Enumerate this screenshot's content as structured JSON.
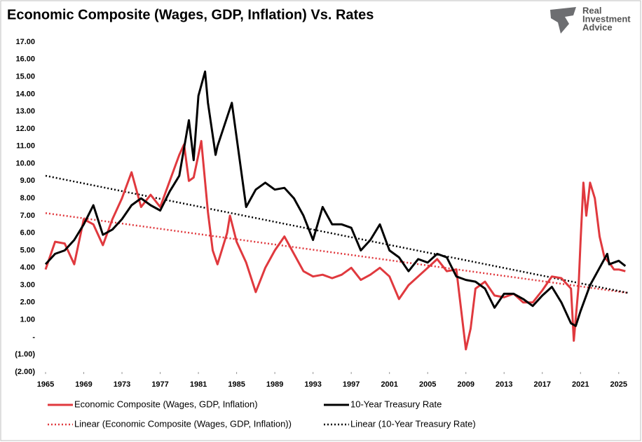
{
  "chart_data": {
    "type": "line",
    "title": "Economic Composite (Wages, GDP, Inflation) Vs. Rates",
    "logo": [
      "Real",
      "Investment",
      "Advice"
    ],
    "xlim": [
      1965,
      2026
    ],
    "xticks": [
      1965,
      1969,
      1973,
      1977,
      1981,
      1985,
      1989,
      1993,
      1997,
      2001,
      2005,
      2009,
      2013,
      2017,
      2021,
      2025
    ],
    "ylim": [
      -2,
      17
    ],
    "yticks": [
      {
        "value": 17,
        "label": "17.00"
      },
      {
        "value": 16,
        "label": "16.00"
      },
      {
        "value": 15,
        "label": "15.00"
      },
      {
        "value": 14,
        "label": "14.00"
      },
      {
        "value": 13,
        "label": "13.00"
      },
      {
        "value": 12,
        "label": "12.00"
      },
      {
        "value": 11,
        "label": "11.00"
      },
      {
        "value": 10,
        "label": "10.00"
      },
      {
        "value": 9,
        "label": "9.00"
      },
      {
        "value": 8,
        "label": "8.00"
      },
      {
        "value": 7,
        "label": "7.00"
      },
      {
        "value": 6,
        "label": "6.00"
      },
      {
        "value": 5,
        "label": "5.00"
      },
      {
        "value": 4,
        "label": "4.00"
      },
      {
        "value": 3,
        "label": "3.00"
      },
      {
        "value": 2,
        "label": "2.00"
      },
      {
        "value": 1,
        "label": "1.00"
      },
      {
        "value": 0,
        "label": "-"
      },
      {
        "value": -1,
        "label": "(1.00)"
      },
      {
        "value": -2,
        "label": "(2.00)"
      }
    ],
    "grid": false,
    "series": [
      {
        "name": "Economic Composite (Wages, GDP, Inflation)",
        "color": "#e0393e",
        "style": "solid",
        "x": [
          1965,
          1966,
          1967,
          1968,
          1969,
          1970,
          1971,
          1972,
          1973,
          1974,
          1975,
          1976,
          1977,
          1978,
          1979,
          1979.5,
          1980,
          1980.5,
          1981,
          1981.3,
          1982,
          1982.5,
          1983,
          1984,
          1984.3,
          1985,
          1986,
          1987,
          1988,
          1989,
          1990,
          1991,
          1992,
          1993,
          1994,
          1995,
          1996,
          1997,
          1998,
          1999,
          2000,
          2001,
          2002,
          2003,
          2004,
          2005,
          2006,
          2007,
          2008,
          2009,
          2009.5,
          2010,
          2011,
          2012,
          2013,
          2014,
          2015,
          2016,
          2017,
          2018,
          2019,
          2020,
          2020.3,
          2020.8,
          2021,
          2021.3,
          2021.6,
          2022,
          2022.5,
          2023,
          2023.5,
          2024,
          2024.5,
          2025,
          2025.7
        ],
        "values": [
          3.9,
          5.5,
          5.4,
          4.2,
          6.8,
          6.5,
          5.3,
          6.8,
          8.0,
          9.5,
          7.5,
          8.2,
          7.5,
          9.0,
          10.5,
          11.1,
          9.0,
          9.2,
          10.5,
          11.3,
          7.2,
          5.0,
          4.2,
          6.0,
          7.0,
          5.5,
          4.3,
          2.6,
          4.0,
          5.0,
          5.8,
          4.8,
          3.8,
          3.5,
          3.6,
          3.4,
          3.6,
          4.0,
          3.3,
          3.6,
          4.0,
          3.5,
          2.2,
          3.0,
          3.5,
          4.0,
          4.5,
          3.8,
          3.9,
          -0.7,
          0.5,
          2.8,
          3.2,
          2.4,
          2.3,
          2.5,
          2.0,
          2.0,
          2.7,
          3.5,
          3.4,
          2.8,
          -0.2,
          3.0,
          5.5,
          8.9,
          7.0,
          8.9,
          8.0,
          5.8,
          4.6,
          4.3,
          3.9,
          3.9,
          3.8
        ]
      },
      {
        "name": "10-Year Treasury Rate",
        "color": "#000000",
        "style": "solid",
        "x": [
          1965,
          1966,
          1967,
          1968,
          1969,
          1970,
          1971,
          1972,
          1973,
          1974,
          1975,
          1976,
          1977,
          1978,
          1979,
          1980,
          1980.5,
          1981,
          1981.7,
          1982,
          1982.8,
          1983,
          1984.5,
          1985,
          1986,
          1987,
          1988,
          1989,
          1990,
          1991,
          1992,
          1993,
          1994,
          1995,
          1996,
          1997,
          1998,
          1999,
          2000,
          2001,
          2002,
          2003,
          2004,
          2005,
          2006,
          2007,
          2008,
          2009,
          2010,
          2011,
          2012,
          2013,
          2014,
          2015,
          2016,
          2017,
          2018,
          2019,
          2020,
          2020.5,
          2021,
          2022,
          2023,
          2023.8,
          2024,
          2025,
          2025.7
        ],
        "values": [
          4.2,
          4.8,
          5.0,
          5.6,
          6.5,
          7.6,
          5.9,
          6.2,
          6.8,
          7.6,
          8.0,
          7.6,
          7.3,
          8.4,
          9.3,
          12.5,
          10.2,
          13.9,
          15.3,
          13.5,
          10.5,
          11.0,
          13.5,
          11.5,
          7.5,
          8.5,
          8.9,
          8.5,
          8.6,
          8.0,
          7.0,
          5.6,
          7.5,
          6.5,
          6.5,
          6.3,
          5.0,
          5.6,
          6.5,
          5.0,
          4.6,
          3.8,
          4.5,
          4.3,
          4.8,
          4.6,
          3.5,
          3.3,
          3.2,
          2.8,
          1.7,
          2.5,
          2.5,
          2.2,
          1.8,
          2.4,
          2.9,
          2.0,
          0.8,
          0.65,
          1.5,
          3.0,
          4.0,
          4.8,
          4.2,
          4.4,
          4.1
        ]
      },
      {
        "name": "Linear (Economic Composite (Wages, GDP, Inflation))",
        "color": "#e0393e",
        "style": "dotted",
        "x": [
          1965,
          2026
        ],
        "values": [
          7.15,
          2.55
        ]
      },
      {
        "name": "Linear (10-Year Treasury Rate)",
        "color": "#000000",
        "style": "dotted",
        "x": [
          1965,
          2026
        ],
        "values": [
          9.3,
          2.55
        ]
      }
    ]
  }
}
